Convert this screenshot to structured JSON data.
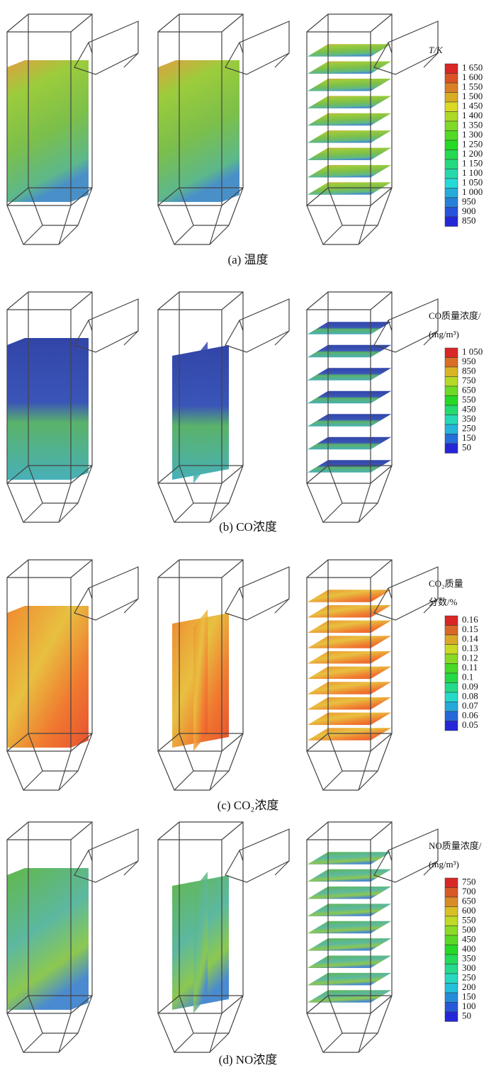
{
  "rows": [
    {
      "caption": "(a) 温度",
      "legend": {
        "title": [
          "T/K"
        ],
        "levels": [
          "1 650",
          "1 600",
          "1 550",
          "1 500",
          "1 450",
          "1 400",
          "1 350",
          "1 300",
          "1 250",
          "1 200",
          "1 150",
          "1 100",
          "1 050",
          "1 000",
          "950",
          "900",
          "850"
        ]
      }
    },
    {
      "caption": "(b) CO浓度",
      "legend": {
        "title": [
          "CO质量浓度/",
          "(mg/m³)"
        ],
        "levels": [
          "1 050",
          "950",
          "850",
          "750",
          "650",
          "550",
          "450",
          "350",
          "250",
          "150",
          "50"
        ]
      }
    },
    {
      "caption": "(c) CO₂浓度",
      "legend": {
        "title": [
          "CO₂质量",
          "分数/%"
        ],
        "levels": [
          "0.16",
          "0.15",
          "0.14",
          "0.13",
          "0.12",
          "0.11",
          "0.1",
          "0.09",
          "0.08",
          "0.07",
          "0.06",
          "0.05"
        ]
      }
    },
    {
      "caption": "(d) NO浓度",
      "legend": {
        "title": [
          "NO质量浓度/",
          "(mg/m³)"
        ],
        "levels": [
          "750",
          "700",
          "650",
          "600",
          "550",
          "500",
          "450",
          "400",
          "350",
          "300",
          "250",
          "200",
          "150",
          "100",
          "50"
        ]
      }
    }
  ]
}
